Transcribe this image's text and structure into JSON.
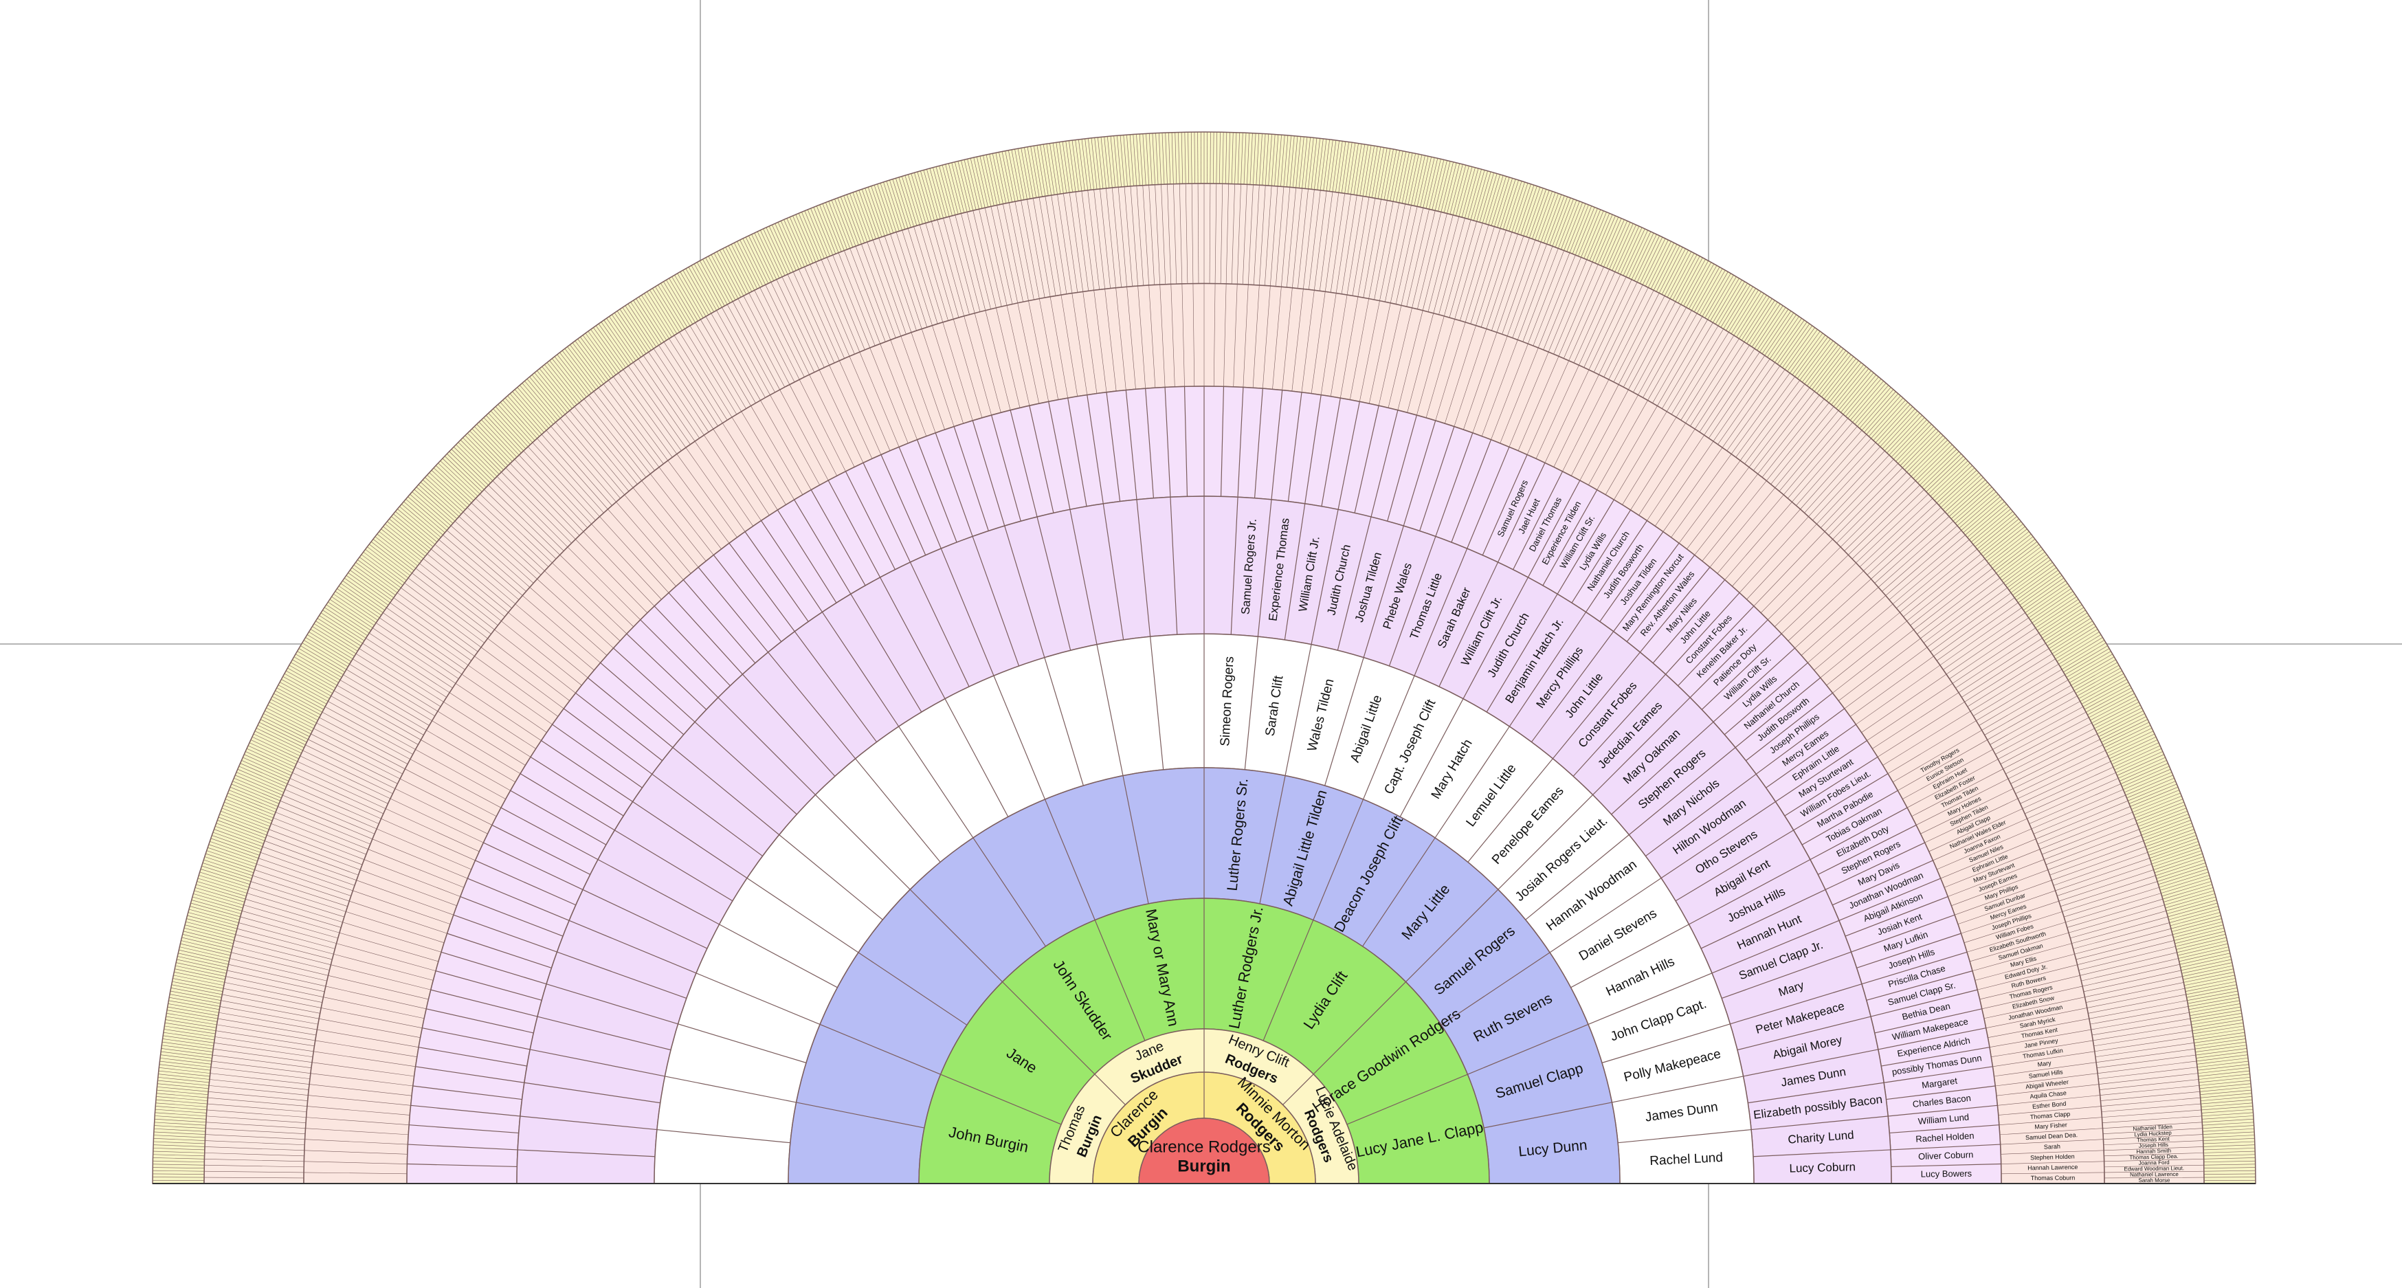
{
  "chart": {
    "title": "",
    "type": "fan-chart",
    "generations": 11,
    "colors": {
      "gen0": "#f06a6a",
      "gen1": "#fbe98a",
      "gen2": "#fdf6c6",
      "gen3": "#9be86b",
      "gen4": "#b7bdf5",
      "gen5": "#ffffff",
      "gen6": "#f1dcfa",
      "gen7": "#f5e1fb",
      "gen8": "#fbe6e0",
      "gen9": "#fbe9e2",
      "gen10": "#f7f5c6",
      "line": "#7b5d5d",
      "guide": "#b5b5b5"
    }
  },
  "people": {
    "root": {
      "given": "Clarence Rodgers",
      "surname": "Burgin"
    },
    "gen1": [
      {
        "given": "Clarence",
        "surname": "Burgin"
      },
      {
        "given": "Minnie Morton",
        "surname": "Rodgers"
      }
    ],
    "gen2": [
      {
        "given": "Thomas",
        "surname": "Burgin"
      },
      {
        "given": "Jane",
        "surname": "Skudder"
      },
      {
        "given": "Henry Clift",
        "surname": "Rodgers"
      },
      {
        "given": "Lucie Adelaide",
        "surname": "Rodgers"
      }
    ],
    "gen3": [
      "John Burgin",
      "Jane",
      "John Skudder",
      "Mary or Mary Ann",
      "Luther Rodgers  Jr.",
      "Lydia Clift",
      "Horace Goodwin Rodgers",
      "Lucy Jane L. Clapp"
    ],
    "gen4": [
      "",
      "",
      "",
      "",
      "Luther Rogers  Sr.",
      "Abigail Little Tilden",
      "Deacon Joseph Clift",
      "Mary Little",
      "Samuel Rogers",
      "Ruth Stevens",
      "Samuel Clapp",
      "Lucy Dunn"
    ],
    "gen5": [
      "Simeon Rogers",
      "Sarah Clift",
      "Wales Tilden",
      "Abigail Little",
      "Capt. Joseph Clift",
      "Mary Hatch",
      "Lemuel Little",
      "Penelope Eames",
      "Josiah Rogers  Lieut.",
      "Hannah Woodman",
      "Daniel Stevens",
      "Hannah Hills",
      "John Clapp  Capt.",
      "Polly Makepeace",
      "James Dunn",
      "Rachel Lund"
    ],
    "gen6": [
      "Samuel Rogers  Jr.",
      "Experience Thomas",
      "William Clift  Jr.",
      "Judith Church",
      "Joshua Tilden",
      "Phebe Wales",
      "Thomas Little",
      "Sarah Baker",
      "William Clift  Jr.",
      "Judith Church",
      "Benjamin Hatch  Jr.",
      "Mercy Phillips",
      "John Little",
      "Constant Fobes",
      "Jedediah Eames",
      "Mary Oakman",
      "Stephen Rogers",
      "Mary Nichols",
      "Hilton Woodman",
      "Otho Stevens",
      "Abigail Kent",
      "Joshua Hills",
      "Hannah Hunt",
      "Samuel Clapp  Jr.",
      "Mary",
      "Peter Makepeace",
      "Abigail Morey",
      "James Dunn",
      "Elizabeth possibly Bacon",
      "Charity Lund",
      "Lucy Coburn"
    ],
    "gen7": [
      "Samuel Rogers",
      "Jael Huet",
      "Daniel Thomas",
      "Experience Tilden",
      "William Clift  Sr.",
      "Lydia Wills",
      "Nathaniel Church",
      "Judith Bosworth",
      "Joshua Tilden",
      "Mary Remington Norcut",
      "Rev. Atherton Wales",
      "Mary Niles",
      "John Little",
      "Constant Fobes",
      "Kenelm Baker  Jr.",
      "Patience Doty",
      "William Clift  Sr.",
      "Lydia Wills",
      "Nathaniel Church",
      "Judith Bosworth",
      "Joseph Phillips",
      "Mercy Eames",
      "Ephraim Little",
      "Mary Sturtevant",
      "William Fobes  Lieut.",
      "Martha Pabodie",
      "Tobias Oakman",
      "Elizabeth Doty",
      "Stephen Rogers",
      "Mary Davis",
      "Jonathan Woodman",
      "Abigail Atkinson",
      "Josiah Kent",
      "Mary Lufkin",
      "Joseph Hills",
      "Priscilla Chase",
      "Samuel Clapp  Sr.",
      "Bethia Dean",
      "William Makepeace",
      "Experience Aldrich",
      "possibly Thomas Dunn",
      "Margaret",
      "Charles Bacon",
      "William Lund",
      "Rachel Holden",
      "Oliver Coburn",
      "Lucy Bowers"
    ],
    "gen8": [
      "Timothy Rogers",
      "Eunice Stetson",
      "Ephraim Huet",
      "Elizabeth Foster",
      "Thomas Tilden",
      "Mary Holmes",
      "Stephen Tilden",
      "Abigail Clapp",
      "Nathaniel Wales  Elder",
      "Joanna Faxon",
      "Samuel Niles",
      "Ephraim Little",
      "Mary Sturtevant",
      "Joseph Eames",
      "Mary Phillips",
      "Samuel Dunbar",
      "Mercy Eames",
      "Joseph Phillips",
      "William Fobes",
      "Elizabeth Southworth",
      "Samuel Oakman",
      "Mary Ellis",
      "Edward Doty  Jr.",
      "Ruth Bowers",
      "Thomas Rogers",
      "Elizabeth Snow",
      "Jonathan Woodman",
      "Sarah Myrick",
      "Thomas Kent",
      "Jane Pinney",
      "Thomas Lufkin",
      "Mary",
      "Samuel Hills",
      "Abigail Wheeler",
      "Aquila Chase",
      "Esther Bond",
      "Thomas Clapp",
      "Mary Fisher",
      "Samuel Dean  Dea.",
      "Sarah",
      "Stephen Holden",
      "Hannah Lawrence",
      "Thomas Coburn"
    ],
    "gen9": [
      "Nathaniel Tilden",
      "Lydia Huckstep",
      "Thomas Kent",
      "Joseph Hills",
      "Hannah Smith",
      "Thomas Clapp  Dea.",
      "Joanna Ford",
      "Edward Woodman  Lieut.",
      "Nathaniel Lawrence",
      "Sarah Morse"
    ]
  },
  "fan_text": {
    "gen6_left_blank_count": 0
  }
}
